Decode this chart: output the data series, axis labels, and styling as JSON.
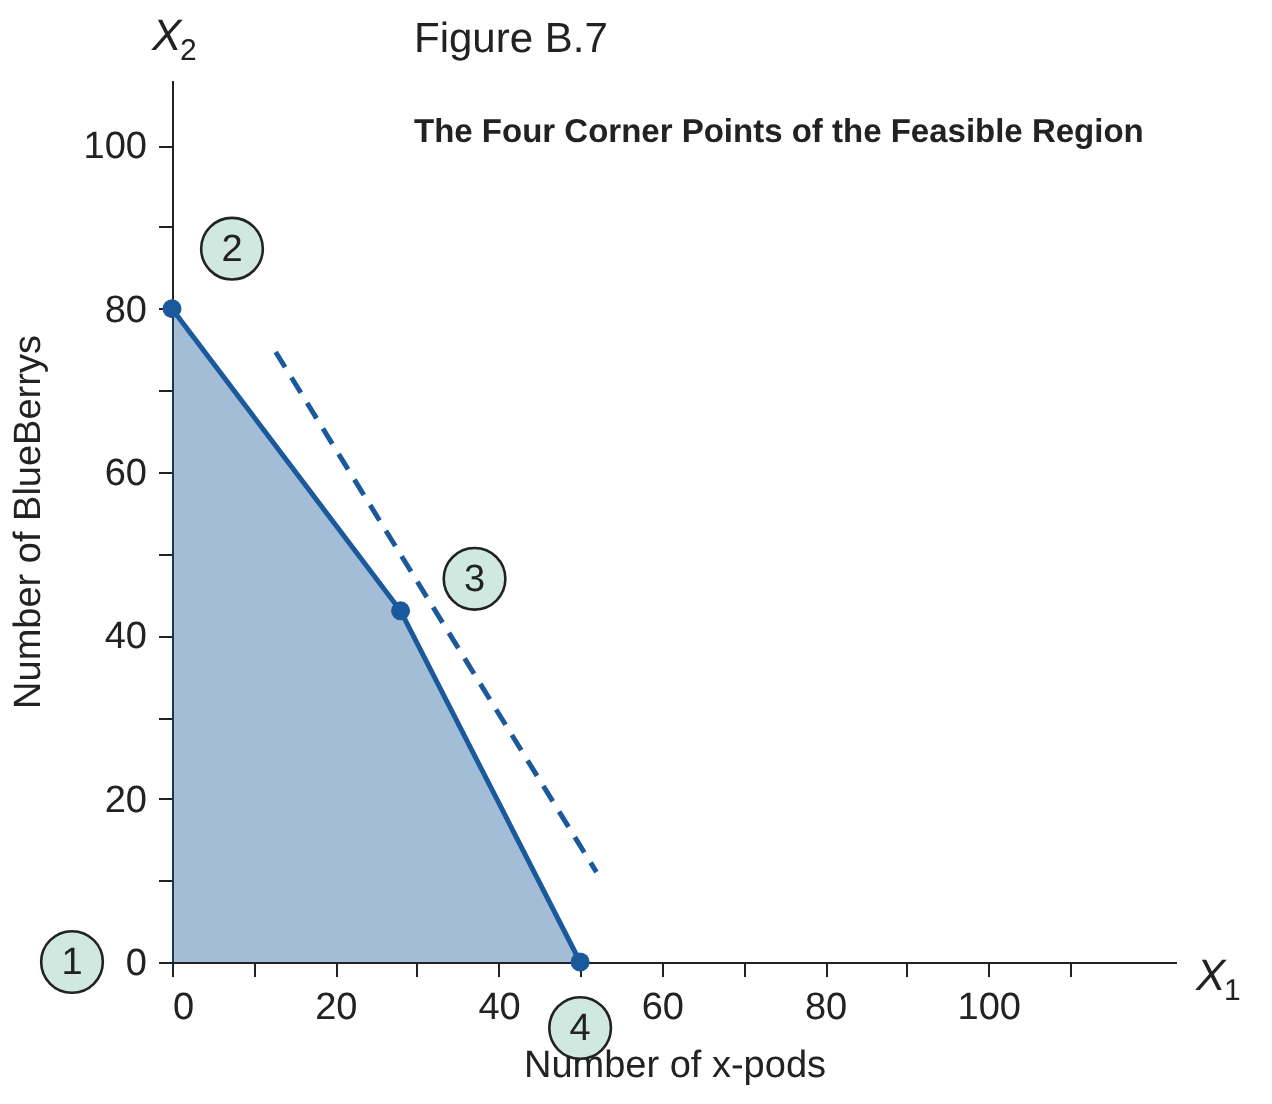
{
  "chart_data": {
    "type": "area",
    "title": "Figure B.7",
    "subtitle": "The Four Corner Points of the Feasible Region",
    "xlabel": "Number of x-pods",
    "ylabel": "Number of BlueBerrys",
    "x": [
      0,
      28,
      50
    ],
    "series": [
      {
        "color": "#1a5a9c",
        "values": [
          80,
          43,
          0
        ]
      },
      {
        "type": "scatter",
        "color": "#1a5a9c",
        "x": [
          0,
          28,
          50
        ],
        "values": [
          80,
          43,
          0
        ]
      },
      {
        "type": "line",
        "color": "#1a5a9c",
        "line_style": "dashed",
        "x": [
          12.7,
          52
        ],
        "values": [
          74.7,
          11
        ]
      }
    ],
    "annotations": [
      "X$_{1}$",
      "X$_{2}$",
      {
        "text": "1",
        "x": 0,
        "y": 0
      },
      {
        "text": "2",
        "x": 0,
        "y": 80
      },
      {
        "text": "3",
        "x": 28,
        "y": 43
      },
      {
        "text": "4",
        "x": 50,
        "y": 0
      }
    ],
    "xlim": [
      0,
      123
    ],
    "ylim": [
      0,
      108
    ],
    "xticks": [
      0,
      {
        "value": 10,
        "label": null
      },
      20,
      {
        "value": 30,
        "label": null
      },
      40,
      {
        "value": 50,
        "label": null
      },
      60,
      {
        "value": 70,
        "label": null
      },
      80,
      {
        "value": 90,
        "label": null
      },
      100,
      {
        "value": 110,
        "label": null
      }
    ],
    "yticks": [
      0,
      {
        "value": 10,
        "label": null
      },
      20,
      {
        "value": 30,
        "label": null
      },
      40,
      {
        "value": 50,
        "label": null
      },
      60,
      {
        "value": 70,
        "label": null
      },
      80,
      {
        "value": 90,
        "label": null
      },
      100
    ],
    "grid": false
  }
}
